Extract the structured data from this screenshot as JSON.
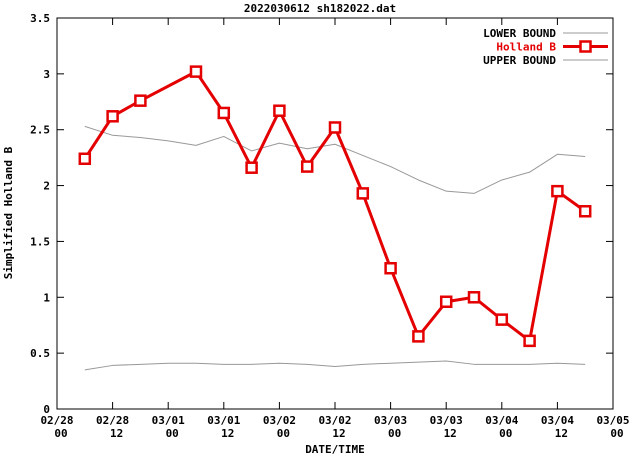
{
  "chart_data": {
    "type": "line",
    "title": "2022030612 sh182022.dat",
    "xlabel": "DATE/TIME",
    "ylabel": "Simplified Holland B",
    "ylim": [
      0,
      3.5
    ],
    "yticks": [
      0,
      0.5,
      1,
      1.5,
      2,
      2.5,
      3,
      3.5
    ],
    "ytick_labels": [
      "0",
      "0.5",
      "1",
      "1.5",
      "2",
      "2.5",
      "3",
      "3.5"
    ],
    "xlim_hours": [
      0,
      120
    ],
    "xticks": [
      {
        "hour": 0,
        "line1": "02/28",
        "line2": "00"
      },
      {
        "hour": 12,
        "line1": "02/28",
        "line2": "12"
      },
      {
        "hour": 24,
        "line1": "03/01",
        "line2": "00"
      },
      {
        "hour": 36,
        "line1": "03/01",
        "line2": "12"
      },
      {
        "hour": 48,
        "line1": "03/02",
        "line2": "00"
      },
      {
        "hour": 60,
        "line1": "03/02",
        "line2": "12"
      },
      {
        "hour": 72,
        "line1": "03/03",
        "line2": "00"
      },
      {
        "hour": 84,
        "line1": "03/03",
        "line2": "12"
      },
      {
        "hour": 96,
        "line1": "03/04",
        "line2": "00"
      },
      {
        "hour": 108,
        "line1": "03/04",
        "line2": "12"
      },
      {
        "hour": 120,
        "line1": "03/05",
        "line2": "00"
      }
    ],
    "grid": false,
    "legend_position": "top-right",
    "series": [
      {
        "name": "LOWER BOUND",
        "color": "#989898",
        "label_color": "#000000",
        "width": 1,
        "marker": false,
        "x_hours": [
          6,
          12,
          18,
          24,
          30,
          36,
          42,
          48,
          54,
          60,
          66,
          72,
          78,
          84,
          90,
          96,
          102,
          108,
          114
        ],
        "values": [
          0.35,
          0.39,
          0.4,
          0.41,
          0.41,
          0.4,
          0.4,
          0.41,
          0.4,
          0.38,
          0.4,
          0.41,
          0.42,
          0.43,
          0.4,
          0.4,
          0.4,
          0.41,
          0.4
        ]
      },
      {
        "name": "Holland B",
        "color": "#e40000",
        "label_color": "#e40000",
        "width": 3,
        "marker": true,
        "x_hours": [
          6,
          12,
          18,
          30,
          36,
          42,
          48,
          54,
          60,
          66,
          72,
          78,
          84,
          90,
          96,
          102,
          108,
          114
        ],
        "values": [
          2.24,
          2.62,
          2.76,
          3.02,
          2.65,
          2.16,
          2.67,
          2.17,
          2.52,
          1.93,
          1.26,
          0.65,
          0.96,
          1.0,
          0.8,
          0.61,
          1.95,
          1.77
        ]
      },
      {
        "name": "UPPER BOUND",
        "color": "#989898",
        "label_color": "#000000",
        "width": 1,
        "marker": false,
        "x_hours": [
          6,
          12,
          18,
          24,
          30,
          36,
          42,
          48,
          54,
          60,
          66,
          72,
          78,
          84,
          90,
          96,
          102,
          108,
          114
        ],
        "values": [
          2.53,
          2.45,
          2.43,
          2.4,
          2.36,
          2.44,
          2.31,
          2.38,
          2.33,
          2.37,
          2.27,
          2.17,
          2.05,
          1.95,
          1.93,
          2.05,
          2.12,
          2.28,
          2.26
        ]
      }
    ]
  }
}
